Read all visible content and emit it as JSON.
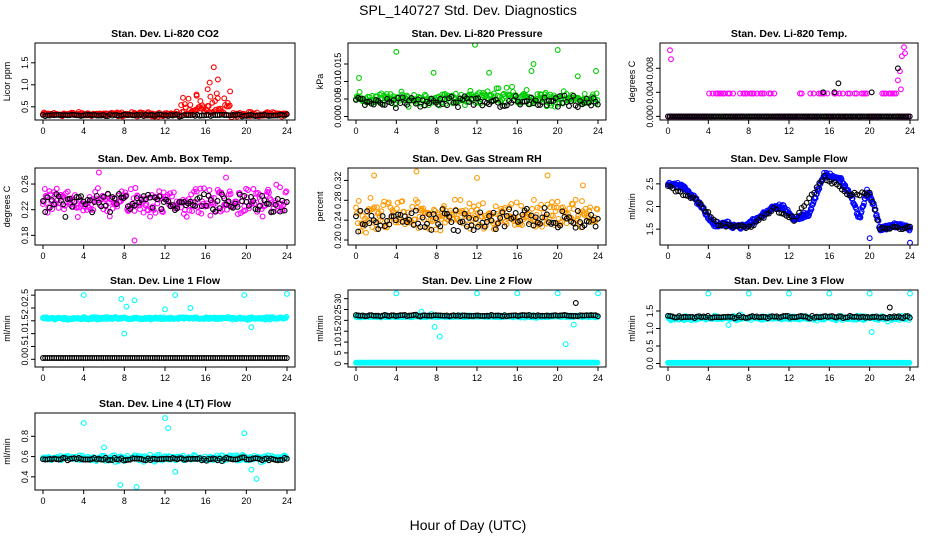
{
  "page": {
    "title": "SPL_140727  Std. Dev. Diagnostics",
    "xlabel": "Hour of Day (UTC)"
  },
  "chart_data": [
    {
      "type": "scatter",
      "title": "Stan. Dev. Li-820 CO2",
      "ylabel": "Licor ppm",
      "xlim": [
        0,
        24
      ],
      "ylim": [
        0.2,
        1.95
      ],
      "xticks": [
        "0",
        "4",
        "8",
        "12",
        "16",
        "20",
        "24"
      ],
      "yticks": [
        "0.5",
        "1.0",
        "1.5"
      ],
      "ytick_values": [
        0.5,
        1.0,
        1.5
      ],
      "series": [
        {
          "color": "#ff0000",
          "gen": {
            "base": 0.33,
            "noise": 0.04,
            "bumps": [
              [
                13.5,
                18.5,
                0.35
              ]
            ],
            "outliers": [
              [
                16.4,
                1.05
              ],
              [
                16.8,
                1.4
              ],
              [
                17.2,
                1.12
              ],
              [
                16.2,
                0.9
              ],
              [
                18.4,
                0.85
              ],
              [
                15.1,
                0.78
              ]
            ]
          }
        },
        {
          "color": "#000000",
          "gen": {
            "base": 0.31,
            "noise": 0.02,
            "bumps": [],
            "outliers": []
          }
        }
      ]
    },
    {
      "type": "scatter",
      "title": "Stan. Dev. Li-820 Pressure",
      "ylabel": "kPa",
      "xlim": [
        0,
        24
      ],
      "ylim": [
        -0.001,
        0.021
      ],
      "xticks": [
        "0",
        "4",
        "8",
        "12",
        "16",
        "20",
        "24"
      ],
      "yticks": [
        "0.000",
        "0.005",
        "0.010",
        "0.015"
      ],
      "ytick_values": [
        0,
        0.005,
        0.01,
        0.015
      ],
      "series": [
        {
          "color": "#00cc00",
          "gen": {
            "base": 0.005,
            "noise": 0.0015,
            "bumps": [
              [
                11,
                17,
                0.0015
              ]
            ],
            "outliers": [
              [
                0.3,
                0.011
              ],
              [
                4.0,
                0.0185
              ],
              [
                7.7,
                0.0125
              ],
              [
                11.8,
                0.0205
              ],
              [
                13.2,
                0.0125
              ],
              [
                17.4,
                0.013
              ],
              [
                17.6,
                0.015
              ],
              [
                20.0,
                0.019
              ],
              [
                22.0,
                0.0115
              ],
              [
                23.8,
                0.013
              ]
            ]
          }
        },
        {
          "color": "#000000",
          "gen": {
            "base": 0.004,
            "noise": 0.0015,
            "bumps": [],
            "outliers": []
          }
        }
      ]
    },
    {
      "type": "scatter",
      "title": "Stan. Dev. Li-820 Temp.",
      "ylabel": "degrees C",
      "xlim": [
        0,
        24
      ],
      "ylim": [
        -0.0006,
        0.0122
      ],
      "xticks": [
        "0",
        "4",
        "8",
        "12",
        "16",
        "20",
        "24"
      ],
      "yticks": [
        "0.000",
        "0.004",
        "0.008"
      ],
      "ytick_values": [
        0,
        0.004,
        0.008
      ],
      "series": [
        {
          "color": "#ff00ff",
          "gen": {
            "levels": [
              0,
              0.0038
            ],
            "pattern": "steps",
            "outliers": [
              [
                0.2,
                0.011
              ],
              [
                0.3,
                0.0095
              ],
              [
                22.8,
                0.006
              ],
              [
                23.0,
                0.0075
              ],
              [
                23.2,
                0.01
              ],
              [
                23.4,
                0.0115
              ],
              [
                23.5,
                0.0105
              ],
              [
                23.1,
                0.0045
              ]
            ]
          }
        },
        {
          "color": "#000000",
          "gen": {
            "levels": [
              0
            ],
            "pattern": "flat",
            "outliers": [
              [
                15.4,
                0.004
              ],
              [
                16.5,
                0.004
              ],
              [
                16.9,
                0.0055
              ],
              [
                20.2,
                0.004
              ],
              [
                22.8,
                0.008
              ]
            ]
          }
        }
      ]
    },
    {
      "type": "scatter",
      "title": "Stan. Dev. Amb. Box Temp.",
      "ylabel": "degrees C",
      "xlim": [
        0,
        24
      ],
      "ylim": [
        0.165,
        0.285
      ],
      "xticks": [
        "0",
        "4",
        "8",
        "12",
        "16",
        "20",
        "24"
      ],
      "yticks": [
        "0.18",
        "0.22",
        "0.26"
      ],
      "ytick_values": [
        0.18,
        0.22,
        0.26
      ],
      "series": [
        {
          "color": "#ff00ff",
          "gen": {
            "base": 0.232,
            "noise": 0.018,
            "bumps": [],
            "outliers": [
              [
                5.5,
                0.278
              ],
              [
                9.0,
                0.172
              ],
              [
                18.0,
                0.27
              ]
            ]
          }
        },
        {
          "color": "#000000",
          "gen": {
            "base": 0.232,
            "noise": 0.015,
            "bumps": [],
            "outliers": []
          }
        }
      ]
    },
    {
      "type": "scatter",
      "title": "Stan. Dev. Gas Stream RH",
      "ylabel": "percent",
      "xlim": [
        0,
        24
      ],
      "ylim": [
        0.19,
        0.345
      ],
      "xticks": [
        "0",
        "4",
        "8",
        "12",
        "16",
        "20",
        "24"
      ],
      "yticks": [
        "0.20",
        "0.24",
        "0.28",
        "0.32"
      ],
      "ytick_values": [
        0.2,
        0.24,
        0.28,
        0.32
      ],
      "series": [
        {
          "color": "#ff9900",
          "gen": {
            "base": 0.25,
            "noise": 0.025,
            "bumps": [],
            "outliers": [
              [
                1.8,
                0.33
              ],
              [
                6.0,
                0.338
              ],
              [
                12.0,
                0.325
              ],
              [
                19.0,
                0.33
              ],
              [
                22.5,
                0.31
              ]
            ]
          }
        },
        {
          "color": "#000000",
          "gen": {
            "base": 0.24,
            "noise": 0.02,
            "bumps": [],
            "outliers": []
          }
        }
      ]
    },
    {
      "type": "scatter",
      "title": "Stan. Dev. Sample Flow",
      "ylabel": "ml/min",
      "xlim": [
        0,
        24
      ],
      "ylim": [
        1.15,
        2.85
      ],
      "xticks": [
        "0",
        "4",
        "8",
        "12",
        "16",
        "20",
        "24"
      ],
      "yticks": [
        "1.5",
        "2.0",
        "2.5"
      ],
      "ytick_values": [
        1.5,
        2.0,
        2.5
      ],
      "series": [
        {
          "color": "#0000ff",
          "gen": {
            "curve": [
              [
                0,
                2.5
              ],
              [
                1.5,
                2.45
              ],
              [
                3,
                2.1
              ],
              [
                4.5,
                1.6
              ],
              [
                6,
                1.6
              ],
              [
                7.5,
                1.55
              ],
              [
                9,
                1.75
              ],
              [
                10.5,
                2.0
              ],
              [
                11.5,
                2.0
              ],
              [
                12.5,
                1.7
              ],
              [
                14,
                1.85
              ],
              [
                15.5,
                2.7
              ],
              [
                17,
                2.6
              ],
              [
                18,
                2.3
              ],
              [
                19,
                1.75
              ],
              [
                19.8,
                2.35
              ],
              [
                20.5,
                2.0
              ],
              [
                21,
                1.5
              ],
              [
                22.5,
                1.6
              ],
              [
                24,
                1.5
              ]
            ],
            "noise": 0.05,
            "outliers": [
              [
                24.0,
                1.2
              ],
              [
                20.0,
                1.3
              ]
            ]
          }
        },
        {
          "color": "#000000",
          "gen": {
            "curve": [
              [
                0,
                2.45
              ],
              [
                3,
                2.1
              ],
              [
                5,
                1.6
              ],
              [
                8,
                1.55
              ],
              [
                10.5,
                1.95
              ],
              [
                12.5,
                1.7
              ],
              [
                15.5,
                2.65
              ],
              [
                18,
                2.25
              ],
              [
                20,
                2.3
              ],
              [
                21,
                1.5
              ],
              [
                24,
                1.55
              ]
            ],
            "noise": 0.04,
            "sparse": true,
            "outliers": []
          }
        }
      ]
    },
    {
      "type": "scatter",
      "title": "Stan. Dev. Line 1 Flow",
      "ylabel": "ml/min",
      "xlim": [
        0,
        24
      ],
      "ylim": [
        -0.3,
        2.7
      ],
      "xticks": [
        "0",
        "4",
        "8",
        "12",
        "16",
        "20",
        "24"
      ],
      "yticks": [
        "0.0",
        "0.5",
        "1.0",
        "1.5",
        "2.0",
        "2.5"
      ],
      "ytick_values": [
        0,
        0.5,
        1.0,
        1.5,
        2.0,
        2.5
      ],
      "series": [
        {
          "color": "#00ffff",
          "gen": {
            "base": 1.6,
            "noise": 0.04,
            "bumps": [],
            "outliers": [
              [
                4.0,
                2.5
              ],
              [
                7.7,
                2.35
              ],
              [
                8.0,
                1.0
              ],
              [
                8.2,
                2.05
              ],
              [
                9.0,
                2.3
              ],
              [
                13.0,
                2.5
              ],
              [
                14.5,
                2.0
              ],
              [
                19.8,
                2.5
              ],
              [
                20.5,
                1.25
              ],
              [
                24.0,
                2.55
              ],
              [
                12.0,
                1.95
              ]
            ]
          }
        },
        {
          "color": "#000000",
          "gen": {
            "base": 0.05,
            "noise": 0.0,
            "bumps": [],
            "outliers": []
          }
        }
      ]
    },
    {
      "type": "scatter",
      "title": "Stan. Dev. Line 2 Flow",
      "ylabel": "ml/min",
      "xlim": [
        0,
        24
      ],
      "ylim": [
        -1.5,
        34
      ],
      "xticks": [
        "0",
        "4",
        "8",
        "12",
        "16",
        "20",
        "24"
      ],
      "yticks": [
        "0",
        "5",
        "10",
        "15",
        "20",
        "25",
        "30"
      ],
      "ytick_values": [
        0,
        5,
        10,
        15,
        20,
        25,
        30
      ],
      "series": [
        {
          "color": "#00ffff",
          "gen": {
            "base": 0.5,
            "noise": 0.0,
            "bumps": [],
            "outliers": [
              [
                4.0,
                32.5
              ],
              [
                7.5,
                23.0
              ],
              [
                7.8,
                17.0
              ],
              [
                8.3,
                12.5
              ],
              [
                6.5,
                24.0
              ],
              [
                12.0,
                32.5
              ],
              [
                16.0,
                32.5
              ],
              [
                20.0,
                32.5
              ],
              [
                20.8,
                9.0
              ],
              [
                21.6,
                18.0
              ],
              [
                24.0,
                32.5
              ]
            ],
            "second": {
              "base": 21.8,
              "noise": 0.4
            }
          }
        },
        {
          "color": "#000000",
          "gen": {
            "base": 22.2,
            "noise": 0.3,
            "bumps": [],
            "outliers": [
              [
                21.8,
                28.0
              ]
            ]
          }
        }
      ]
    },
    {
      "type": "scatter",
      "title": "Stan. Dev. Line 3 Flow",
      "ylabel": "ml/min",
      "xlim": [
        0,
        24
      ],
      "ylim": [
        -0.1,
        2.1
      ],
      "xticks": [
        "0",
        "4",
        "8",
        "12",
        "16",
        "20",
        "24"
      ],
      "yticks": [
        "0.0",
        "0.5",
        "1.0",
        "1.5"
      ],
      "ytick_values": [
        0,
        0.5,
        1.0,
        1.5
      ],
      "series": [
        {
          "color": "#00ffff",
          "gen": {
            "base": 0.02,
            "noise": 0.0,
            "bumps": [],
            "outliers": [
              [
                4.0,
                2.0
              ],
              [
                8.0,
                2.0
              ],
              [
                12.0,
                2.0
              ],
              [
                16.0,
                2.0
              ],
              [
                20.0,
                2.0
              ],
              [
                24.0,
                2.0
              ],
              [
                6.0,
                1.1
              ],
              [
                7.2,
                1.4
              ],
              [
                20.2,
                0.9
              ],
              [
                21.8,
                1.2
              ]
            ],
            "second": {
              "base": 1.3,
              "noise": 0.05
            }
          }
        },
        {
          "color": "#000000",
          "gen": {
            "base": 1.33,
            "noise": 0.03,
            "bumps": [],
            "outliers": [
              [
                22.0,
                1.6
              ]
            ]
          }
        }
      ]
    },
    {
      "type": "scatter",
      "title": "Stan. Dev. Line 4 (LT) Flow",
      "ylabel": "ml/min",
      "xlim": [
        0,
        24
      ],
      "ylim": [
        0.27,
        1.03
      ],
      "xticks": [
        "0",
        "4",
        "8",
        "12",
        "16",
        "20",
        "24"
      ],
      "yticks": [
        "0.4",
        "0.6",
        "0.8"
      ],
      "ytick_values": [
        0.4,
        0.6,
        0.8
      ],
      "series": [
        {
          "color": "#00ffff",
          "gen": {
            "base": 0.585,
            "noise": 0.025,
            "bumps": [],
            "outliers": [
              [
                4.0,
                0.93
              ],
              [
                6.0,
                0.69
              ],
              [
                7.6,
                0.32
              ],
              [
                9.2,
                0.3
              ],
              [
                12.0,
                0.98
              ],
              [
                12.3,
                0.88
              ],
              [
                19.8,
                0.83
              ],
              [
                20.5,
                0.47
              ],
              [
                21.0,
                0.38
              ],
              [
                13.0,
                0.45
              ]
            ]
          }
        },
        {
          "color": "#000000",
          "gen": {
            "base": 0.575,
            "noise": 0.012,
            "bumps": [],
            "outliers": []
          }
        }
      ]
    }
  ]
}
